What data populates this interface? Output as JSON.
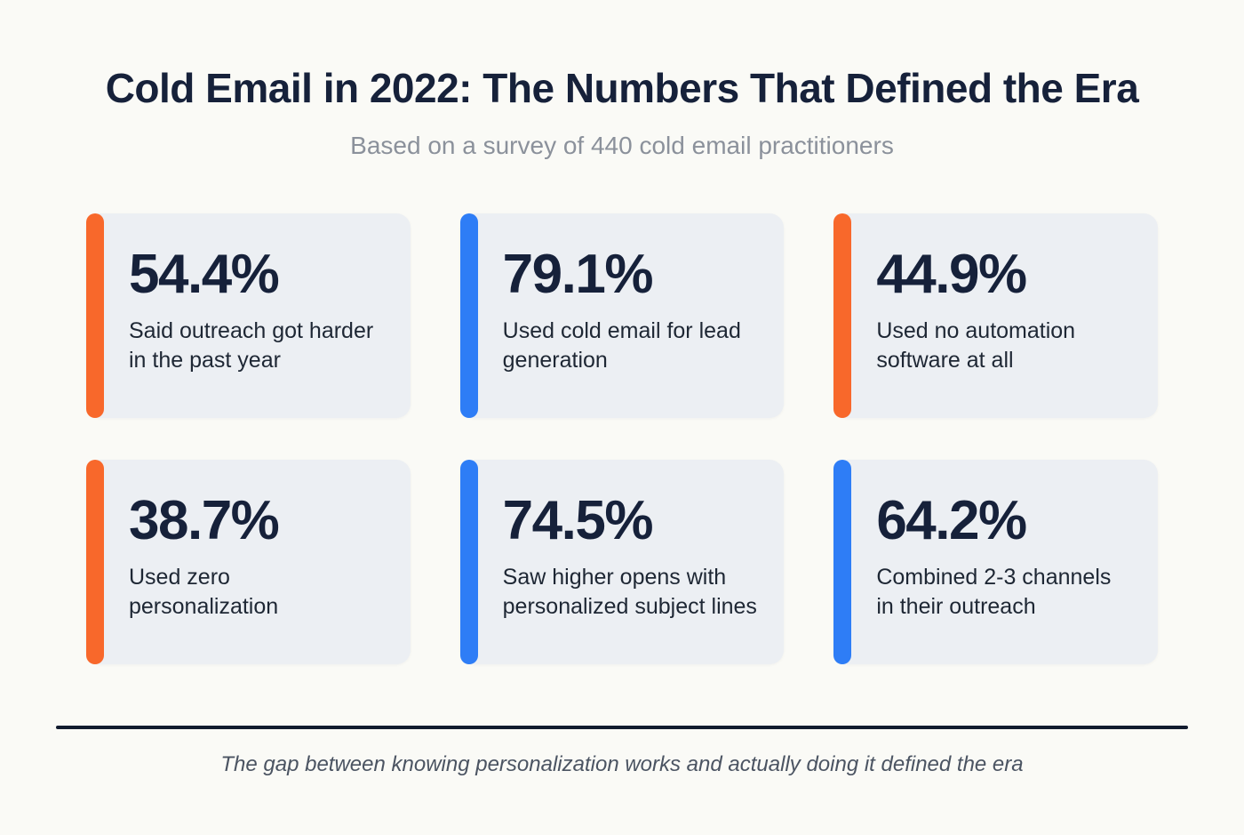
{
  "page": {
    "title": "Cold Email in 2022: The Numbers That Defined the Era",
    "subtitle": "Based on a survey of 440 cold email practitioners",
    "footer_note": "The gap between knowing personalization works and actually doing it defined the era"
  },
  "colors": {
    "accent_orange": "#F8682B",
    "accent_blue": "#2E7DF6",
    "card_bg": "#ECEFF3",
    "page_bg": "#FAFAF6",
    "heading": "#16213A",
    "divider": "#111B2E"
  },
  "cards": [
    {
      "value": "54.4%",
      "label": "Said outreach got harder in the past year",
      "accent": "orange",
      "accent_color": "#F8682B"
    },
    {
      "value": "79.1%",
      "label": "Used cold email for lead generation",
      "accent": "blue",
      "accent_color": "#2E7DF6"
    },
    {
      "value": "44.9%",
      "label": "Used no automation software at all",
      "accent": "orange",
      "accent_color": "#F8682B"
    },
    {
      "value": "38.7%",
      "label": "Used zero personalization",
      "accent": "orange",
      "accent_color": "#F8682B"
    },
    {
      "value": "74.5%",
      "label": "Saw higher opens with personalized subject lines",
      "accent": "blue",
      "accent_color": "#2E7DF6"
    },
    {
      "value": "64.2%",
      "label": "Combined 2-3 channels in their outreach",
      "accent": "blue",
      "accent_color": "#2E7DF6"
    }
  ],
  "chart_data": {
    "type": "table",
    "title": "Cold Email in 2022: The Numbers That Defined the Era",
    "subtitle": "Based on a survey of 440 cold email practitioners",
    "sample": "440 cold email practitioners",
    "categories": [
      "Said outreach got harder in the past year",
      "Used cold email for lead generation",
      "Used no automation software at all",
      "Used zero personalization",
      "Saw higher opens with personalized subject lines",
      "Combined 2-3 channels in their outreach"
    ],
    "values": [
      54.4,
      79.1,
      44.9,
      38.7,
      74.5,
      64.2
    ],
    "unit": "%",
    "legend": [
      "orange accent",
      "blue accent"
    ],
    "footnote": "The gap between knowing personalization works and actually doing it defined the era"
  }
}
